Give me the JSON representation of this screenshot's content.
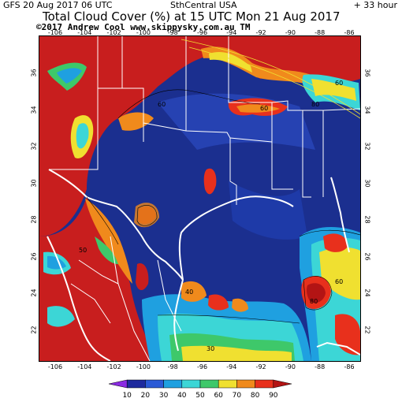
{
  "header": {
    "run_label": "GFS 20 Aug 2017 06 UTC",
    "region": "SthCentral USA",
    "forecast_hour": "+ 33 hour"
  },
  "title": "Total Cloud Cover (%) at 15 UTC Mon 21 Aug 2017",
  "credit": "©2017 Andrew Cool  www.skippysky.com.au  TM",
  "map": {
    "lon_ticks_top": [
      "-106",
      "-104",
      "-102",
      "-100",
      "-98",
      "-96",
      "-94",
      "-92",
      "-90",
      "-88",
      "-86"
    ],
    "lon_ticks_bottom": [
      "-106",
      "-104",
      "-102",
      "-100",
      "-98",
      "-96",
      "-94",
      "-92",
      "-90",
      "-88",
      "-86"
    ],
    "lat_ticks_left": [
      "36",
      "34",
      "32",
      "30",
      "28",
      "26",
      "24",
      "22"
    ],
    "lat_ticks_right": [
      "36",
      "34",
      "32",
      "30",
      "28",
      "26",
      "24",
      "22"
    ],
    "contour_labels": [
      "60",
      "60",
      "80",
      "60",
      "40",
      "30",
      "80",
      "60",
      "50"
    ]
  },
  "legend": {
    "labels": [
      "10",
      "20",
      "30",
      "40",
      "50",
      "60",
      "70",
      "80",
      "90"
    ],
    "colors": [
      "#8a2be2",
      "#1e2a9e",
      "#2b5ad6",
      "#1fa0e0",
      "#3cd6d6",
      "#3ec86a",
      "#f0e030",
      "#f08a1c",
      "#e8301c",
      "#b31414"
    ]
  },
  "colors": {
    "deep_clear": "#1b2f8f",
    "overcast": "#c81e1e",
    "border_white": "#ffffff"
  }
}
